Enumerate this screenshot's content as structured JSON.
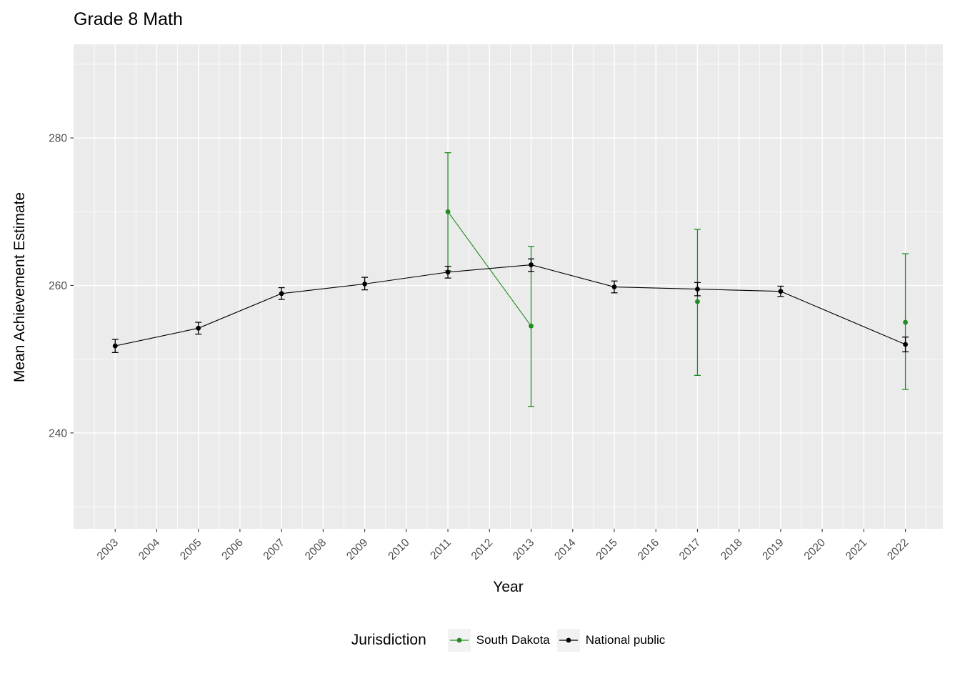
{
  "chart_data": {
    "type": "line",
    "title": "Grade 8 Math",
    "xlabel": "Year",
    "ylabel": "Mean Achievement Estimate",
    "legend_title": "Jurisdiction",
    "panel_bg": "#EBEBEB",
    "grid_color": "#FFFFFF",
    "tick_color": "#333333",
    "tick_label_color": "#4D4D4D",
    "x_ticks": [
      2003,
      2004,
      2005,
      2006,
      2007,
      2008,
      2009,
      2010,
      2011,
      2012,
      2013,
      2014,
      2015,
      2016,
      2017,
      2018,
      2019,
      2020,
      2021,
      2022
    ],
    "y_ticks": [
      240,
      260,
      280
    ],
    "y_minor_ticks": [
      230,
      250,
      270,
      290
    ],
    "xlim": [
      2002.0,
      2022.9
    ],
    "ylim": [
      227.0,
      292.7
    ],
    "series": [
      {
        "name": "South Dakota",
        "color": "#228B22",
        "connect": "segments",
        "segments": [
          [
            2011,
            2013
          ]
        ],
        "points": [
          {
            "x": 2011,
            "y": 270.0,
            "lo": 262.0,
            "hi": 278.0
          },
          {
            "x": 2013,
            "y": 254.5,
            "lo": 243.6,
            "hi": 265.3
          },
          {
            "x": 2017,
            "y": 257.8,
            "lo": 247.8,
            "hi": 267.6
          },
          {
            "x": 2022,
            "y": 255.0,
            "lo": 245.9,
            "hi": 264.3
          }
        ]
      },
      {
        "name": "National public",
        "color": "#000000",
        "connect": "all",
        "segments": [],
        "points": [
          {
            "x": 2003,
            "y": 251.8,
            "lo": 250.9,
            "hi": 252.7
          },
          {
            "x": 2005,
            "y": 254.2,
            "lo": 253.4,
            "hi": 255.0
          },
          {
            "x": 2007,
            "y": 258.9,
            "lo": 258.1,
            "hi": 259.7
          },
          {
            "x": 2009,
            "y": 260.2,
            "lo": 259.4,
            "hi": 261.1
          },
          {
            "x": 2011,
            "y": 261.8,
            "lo": 261.0,
            "hi": 262.6
          },
          {
            "x": 2013,
            "y": 262.8,
            "lo": 261.9,
            "hi": 263.6
          },
          {
            "x": 2015,
            "y": 259.8,
            "lo": 259.0,
            "hi": 260.6
          },
          {
            "x": 2017,
            "y": 259.5,
            "lo": 258.6,
            "hi": 260.4
          },
          {
            "x": 2019,
            "y": 259.2,
            "lo": 258.5,
            "hi": 259.9
          },
          {
            "x": 2022,
            "y": 252.0,
            "lo": 251.0,
            "hi": 253.0
          }
        ]
      }
    ]
  }
}
